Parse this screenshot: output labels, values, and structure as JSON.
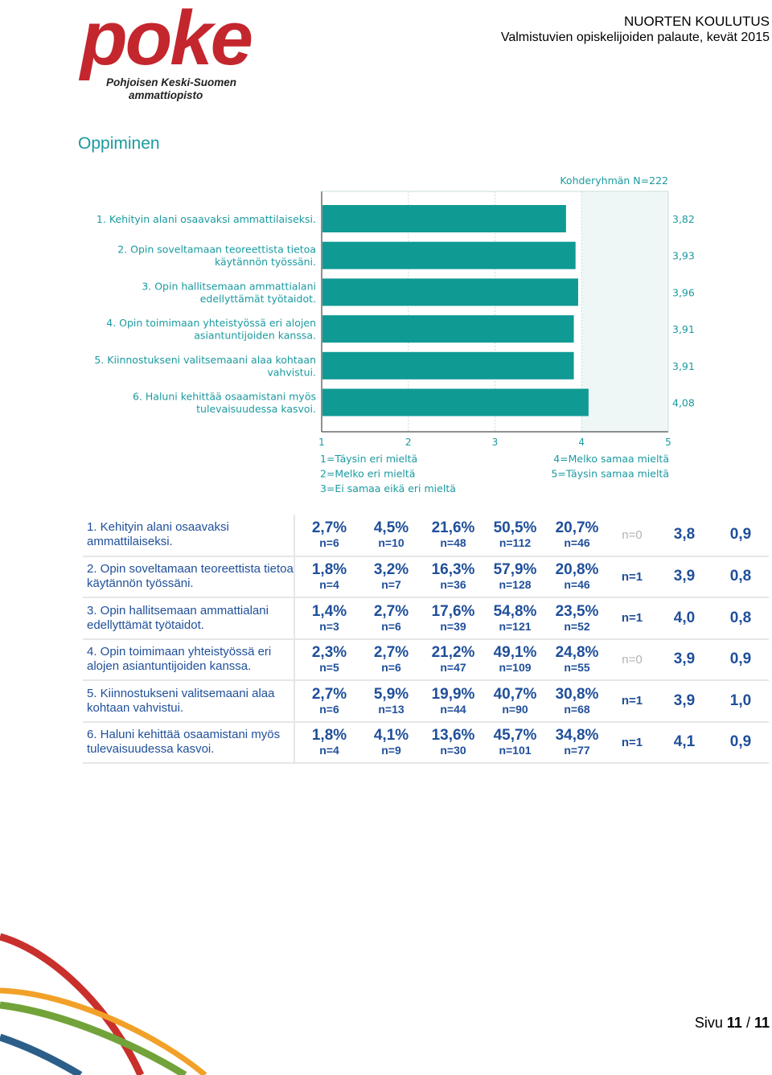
{
  "logo": {
    "word": "poke",
    "line1": "Pohjoisen Keski-Suomen",
    "line2": "ammattiopisto"
  },
  "header": {
    "line1": "NUORTEN KOULUTUS",
    "line2": "Valmistuvien opiskelijoiden palaute, kevät 2015"
  },
  "section_title": "Oppiminen",
  "chart_data": {
    "type": "bar",
    "orientation": "horizontal",
    "annotation": "Kohderyhmän N=222",
    "categories": [
      [
        "1. Kehityin alani osaavaksi ammattilaiseksi."
      ],
      [
        "2. Opin soveltamaan teoreettista tietoa",
        "käytännön työssäni."
      ],
      [
        "3. Opin hallitsemaan ammattialani",
        "edellyttämät työtaidot."
      ],
      [
        "4. Opin toimimaan yhteistyössä eri alojen",
        "asiantuntijoiden kanssa."
      ],
      [
        "5. Kiinnostukseni valitsemaani alaa kohtaan",
        "vahvistui."
      ],
      [
        "6. Haluni kehittää osaamistani myös",
        "tulevaisuudessa kasvoi."
      ]
    ],
    "values": [
      3.82,
      3.93,
      3.96,
      3.91,
      3.91,
      4.08
    ],
    "value_labels": [
      "3,82",
      "3,93",
      "3,96",
      "3,91",
      "3,91",
      "4,08"
    ],
    "xlim": [
      1,
      5
    ],
    "xticks": [
      "1",
      "2",
      "3",
      "4",
      "5"
    ],
    "legend_left": [
      "1=Täysin eri mieltä",
      "2=Melko eri mieltä",
      "3=Ei samaa eikä eri mieltä"
    ],
    "legend_right": [
      "4=Melko samaa mieltä",
      "5=Täysin samaa mieltä"
    ],
    "bar_color": "#109a94",
    "shaded_from": 4
  },
  "table": {
    "rows": [
      {
        "statement": "1. Kehityin alani osaavaksi ammattilaiseksi.",
        "cells": [
          [
            "2,7%",
            "n=6"
          ],
          [
            "4,5%",
            "n=10"
          ],
          [
            "21,6%",
            "n=48"
          ],
          [
            "50,5%",
            "n=112"
          ],
          [
            "20,7%",
            "n=46"
          ]
        ],
        "n_missing": "n=0",
        "n_dim": true,
        "mean": "3,8",
        "sd": "0,9"
      },
      {
        "statement": "2. Opin soveltamaan teoreettista tietoa käytännön työssäni.",
        "cells": [
          [
            "1,8%",
            "n=4"
          ],
          [
            "3,2%",
            "n=7"
          ],
          [
            "16,3%",
            "n=36"
          ],
          [
            "57,9%",
            "n=128"
          ],
          [
            "20,8%",
            "n=46"
          ]
        ],
        "n_missing": "n=1",
        "n_dim": false,
        "mean": "3,9",
        "sd": "0,8"
      },
      {
        "statement": "3. Opin hallitsemaan ammattialani edellyttämät työtaidot.",
        "cells": [
          [
            "1,4%",
            "n=3"
          ],
          [
            "2,7%",
            "n=6"
          ],
          [
            "17,6%",
            "n=39"
          ],
          [
            "54,8%",
            "n=121"
          ],
          [
            "23,5%",
            "n=52"
          ]
        ],
        "n_missing": "n=1",
        "n_dim": false,
        "mean": "4,0",
        "sd": "0,8"
      },
      {
        "statement": "4. Opin toimimaan yhteistyössä eri alojen asiantuntijoiden kanssa.",
        "cells": [
          [
            "2,3%",
            "n=5"
          ],
          [
            "2,7%",
            "n=6"
          ],
          [
            "21,2%",
            "n=47"
          ],
          [
            "49,1%",
            "n=109"
          ],
          [
            "24,8%",
            "n=55"
          ]
        ],
        "n_missing": "n=0",
        "n_dim": true,
        "mean": "3,9",
        "sd": "0,9"
      },
      {
        "statement": "5. Kiinnostukseni valitsemaani alaa kohtaan vahvistui.",
        "cells": [
          [
            "2,7%",
            "n=6"
          ],
          [
            "5,9%",
            "n=13"
          ],
          [
            "19,9%",
            "n=44"
          ],
          [
            "40,7%",
            "n=90"
          ],
          [
            "30,8%",
            "n=68"
          ]
        ],
        "n_missing": "n=1",
        "n_dim": false,
        "mean": "3,9",
        "sd": "1,0"
      },
      {
        "statement": "6. Haluni kehittää osaamistani myös tulevaisuudessa kasvoi.",
        "cells": [
          [
            "1,8%",
            "n=4"
          ],
          [
            "4,1%",
            "n=9"
          ],
          [
            "13,6%",
            "n=30"
          ],
          [
            "45,7%",
            "n=101"
          ],
          [
            "34,8%",
            "n=77"
          ]
        ],
        "n_missing": "n=1",
        "n_dim": false,
        "mean": "4,1",
        "sd": "0,9"
      }
    ]
  },
  "footer": {
    "prefix": "Sivu",
    "page": "11",
    "sep": "/",
    "total": "11"
  },
  "colors": {
    "teal": "#109a94",
    "title": "#1a9aa0",
    "table_text": "#1f4f9a",
    "brand_red": "#c4262e"
  }
}
